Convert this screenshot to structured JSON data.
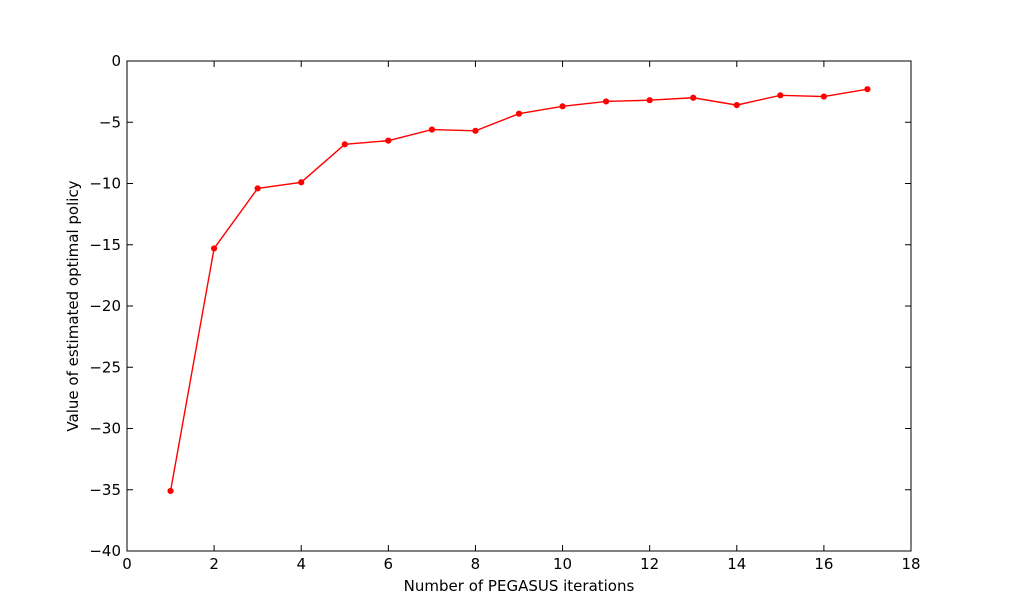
{
  "chart_data": {
    "type": "line",
    "title": "",
    "xlabel": "Number of PEGASUS iterations",
    "ylabel": "Value of estimated optimal policy",
    "xlim": [
      0,
      18
    ],
    "ylim": [
      -40,
      0
    ],
    "xticks": [
      0,
      2,
      4,
      6,
      8,
      10,
      12,
      14,
      16,
      18
    ],
    "yticks": [
      0,
      -5,
      -10,
      -15,
      -20,
      -25,
      -30,
      -35,
      -40
    ],
    "xtick_labels": [
      "0",
      "2",
      "4",
      "6",
      "8",
      "10",
      "12",
      "14",
      "16",
      "18"
    ],
    "ytick_labels": [
      "0",
      "−5",
      "−10",
      "−15",
      "−20",
      "−25",
      "−30",
      "−35",
      "−40"
    ],
    "grid": false,
    "legend": "none",
    "series": [
      {
        "color": "#ff0000",
        "marker": "dot",
        "x": [
          1,
          2,
          3,
          4,
          5,
          6,
          7,
          8,
          9,
          10,
          11,
          12,
          13,
          14,
          15,
          16,
          17
        ],
        "y": [
          -35.1,
          -15.3,
          -10.4,
          -9.9,
          -6.8,
          -6.5,
          -5.6,
          -5.7,
          -4.3,
          -3.7,
          -3.3,
          -3.2,
          -3.0,
          -3.6,
          -2.8,
          -2.9,
          -2.3
        ]
      }
    ]
  }
}
